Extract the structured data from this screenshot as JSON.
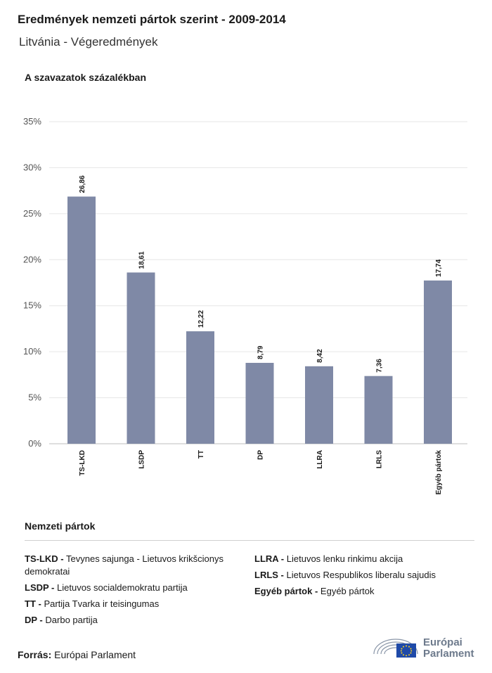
{
  "title": "Eredmények nemzeti pártok szerint - 2009-2014",
  "subtitle": "Litvánia - Végeredmények",
  "chart_data": {
    "type": "bar",
    "title": "A szavazatok százalékban",
    "categories": [
      "TS-LKD",
      "LSDP",
      "TT",
      "DP",
      "LLRA",
      "LRLS",
      "Egyéb pártok"
    ],
    "values": [
      26.86,
      18.61,
      12.22,
      8.79,
      8.42,
      7.36,
      17.74
    ],
    "value_labels": [
      "26,86",
      "18,61",
      "12,22",
      "8,79",
      "8,42",
      "7,36",
      "17,74"
    ],
    "y_ticks": [
      0,
      5,
      10,
      15,
      20,
      25,
      30,
      35
    ],
    "y_tick_labels": [
      "0%",
      "5%",
      "10%",
      "15%",
      "20%",
      "25%",
      "30%",
      "35%"
    ],
    "ylim": [
      0,
      35
    ],
    "grid": true,
    "bar_color": "#7f89a6"
  },
  "legend": {
    "title": "Nemzeti pártok",
    "left": [
      {
        "abbr": "TS-LKD -",
        "name": "Tevynes sajunga - Lietuvos krikšcionys demokratai"
      },
      {
        "abbr": "LSDP -",
        "name": "Lietuvos socialdemokratu partija"
      },
      {
        "abbr": "TT -",
        "name": "Partija Tvarka ir teisingumas"
      },
      {
        "abbr": "DP -",
        "name": "Darbo partija"
      }
    ],
    "right": [
      {
        "abbr": "LLRA -",
        "name": "Lietuvos lenku rinkimu akcija"
      },
      {
        "abbr": "LRLS -",
        "name": "Lietuvos Respublikos liberalu sajudis"
      },
      {
        "abbr": "Egyéb pártok -",
        "name": "Egyéb pártok"
      }
    ]
  },
  "source": {
    "label": "Forrás:",
    "value": "Európai Parlament"
  },
  "logo": {
    "line1": "Európai",
    "line2": "Parlament"
  }
}
